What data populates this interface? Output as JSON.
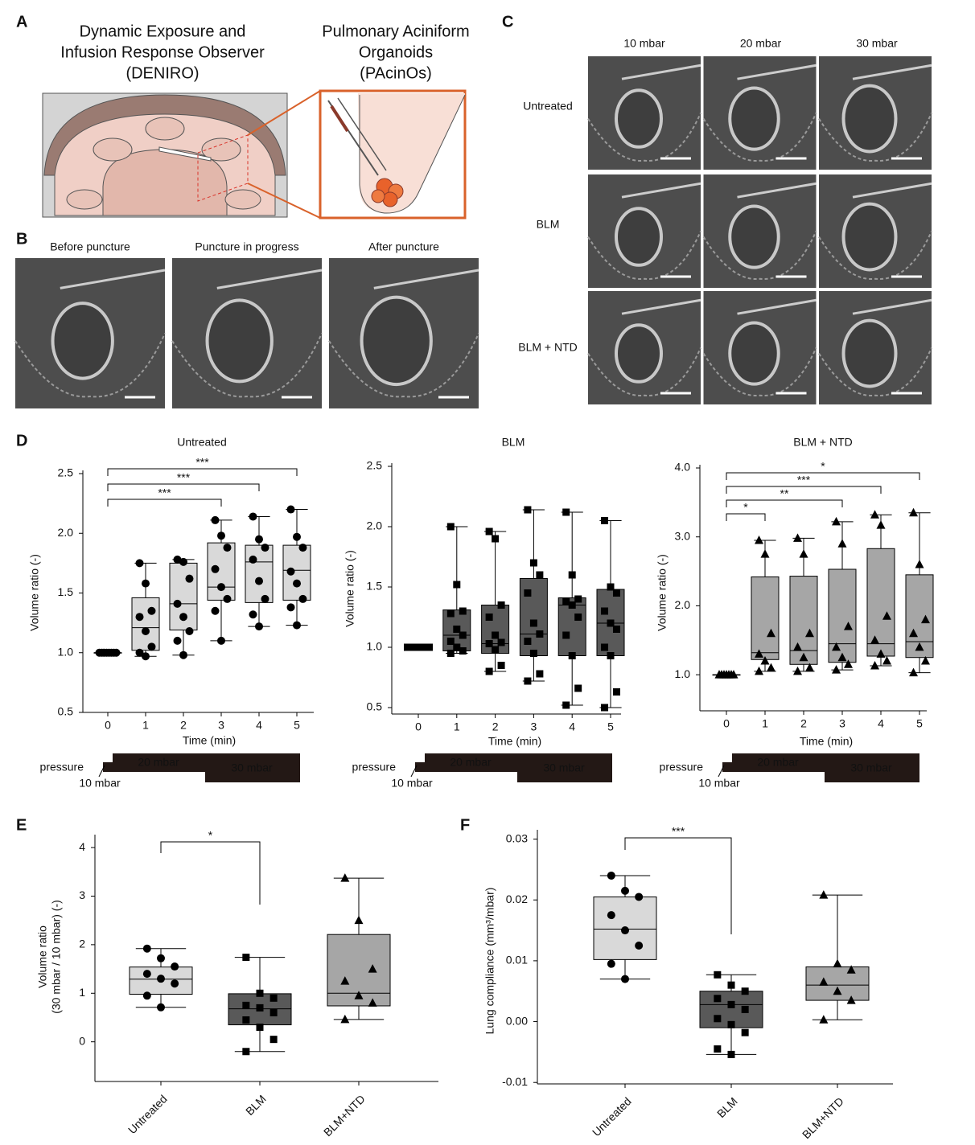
{
  "panel_labels": [
    "A",
    "B",
    "C",
    "D",
    "E",
    "F"
  ],
  "panel_a": {
    "left_title": [
      "Dynamic Exposure and",
      "Infusion Response Observer",
      "(DENIRO)"
    ],
    "right_title": [
      "Pulmonary Aciniform",
      "Organoids",
      "(PAcinOs)"
    ]
  },
  "panel_b": {
    "columns": [
      "Before puncture",
      "Puncture in progress",
      "After puncture"
    ]
  },
  "panel_c": {
    "columns": [
      "10 mbar",
      "20 mbar",
      "30 mbar"
    ],
    "rows": [
      "Untreated",
      "BLM",
      "BLM + NTD"
    ]
  },
  "pressure": {
    "label": "pressure",
    "start": "10 mbar",
    "steps": [
      "20 mbar",
      "30 mbar"
    ]
  },
  "chart_data": [
    {
      "type": "box",
      "title": "Untreated",
      "x_label": "Time (min)",
      "y_label": "Volume ratio (-)",
      "color": "#d9d9d9",
      "marker": "circle",
      "categories": [
        "0",
        "1",
        "2",
        "3",
        "4",
        "5"
      ],
      "ylim": [
        0.5,
        2.5
      ],
      "yticks": [
        {
          "value": 0.5,
          "label": "0.5"
        },
        {
          "value": 1,
          "label": "1.0"
        },
        {
          "value": 1.5,
          "label": "1.5"
        },
        {
          "value": 2,
          "label": "2.0"
        },
        {
          "value": 2.5,
          "label": "2.5"
        }
      ],
      "boxes": [
        {
          "min": 1,
          "q1": 1,
          "median": 1,
          "q3": 1,
          "max": 1,
          "points": [
            1,
            1,
            1,
            1,
            1,
            1,
            1,
            1
          ]
        },
        {
          "min": 0.97,
          "q1": 1.02,
          "median": 1.21,
          "q3": 1.46,
          "max": 1.75,
          "points": [
            1.75,
            1.58,
            1.35,
            1.3,
            1.18,
            1.05,
            1,
            0.97
          ]
        },
        {
          "min": 0.98,
          "q1": 1.19,
          "median": 1.41,
          "q3": 1.75,
          "max": 1.78,
          "points": [
            1.78,
            1.76,
            1.62,
            1.41,
            1.3,
            1.18,
            1.1,
            0.98
          ]
        },
        {
          "min": 1.1,
          "q1": 1.44,
          "median": 1.55,
          "q3": 1.92,
          "max": 2.11,
          "points": [
            2.11,
            1.98,
            1.88,
            1.7,
            1.55,
            1.45,
            1.35,
            1.1
          ]
        },
        {
          "min": 1.22,
          "q1": 1.42,
          "median": 1.76,
          "q3": 1.9,
          "max": 2.14,
          "points": [
            2.14,
            1.95,
            1.88,
            1.78,
            1.6,
            1.45,
            1.32,
            1.22
          ]
        },
        {
          "min": 1.23,
          "q1": 1.44,
          "median": 1.69,
          "q3": 1.9,
          "max": 2.2,
          "points": [
            2.2,
            1.97,
            1.88,
            1.68,
            1.58,
            1.45,
            1.38,
            1.23
          ]
        }
      ],
      "significance": [
        {
          "between": [
            "0",
            "5"
          ],
          "label": "***"
        },
        {
          "between": [
            "0",
            "4"
          ],
          "label": "***"
        },
        {
          "between": [
            "0",
            "3"
          ],
          "label": "***"
        }
      ]
    },
    {
      "type": "box",
      "title": "BLM",
      "x_label": "Time (min)",
      "y_label": "Volume ratio (-)",
      "color": "#595959",
      "marker": "square",
      "categories": [
        "0",
        "1",
        "2",
        "3",
        "4",
        "5"
      ],
      "ylim": [
        0.5,
        2.5
      ],
      "yticks": [
        {
          "value": 0.5,
          "label": "0.5"
        },
        {
          "value": 1,
          "label": "1.0"
        },
        {
          "value": 1.5,
          "label": "1.5"
        },
        {
          "value": 2,
          "label": "2.0"
        },
        {
          "value": 2.5,
          "label": "2.5"
        }
      ],
      "boxes": [
        {
          "min": 1,
          "q1": 1,
          "median": 1,
          "q3": 1,
          "max": 1,
          "points": [
            1,
            1,
            1,
            1,
            1,
            1,
            1,
            1,
            1,
            1
          ]
        },
        {
          "min": 0.95,
          "q1": 0.97,
          "median": 1.1,
          "q3": 1.31,
          "max": 2,
          "points": [
            2,
            1.52,
            1.3,
            1.28,
            1.15,
            1.1,
            1.05,
            1,
            0.97,
            0.95
          ]
        },
        {
          "min": 0.8,
          "q1": 0.95,
          "median": 1.03,
          "q3": 1.35,
          "max": 1.96,
          "points": [
            1.96,
            1.9,
            1.35,
            1.25,
            1.1,
            1.04,
            1.03,
            0.98,
            0.85,
            0.8
          ]
        },
        {
          "min": 0.72,
          "q1": 0.93,
          "median": 1.11,
          "q3": 1.57,
          "max": 2.14,
          "points": [
            2.14,
            1.7,
            1.6,
            1.45,
            1.2,
            1.11,
            1.05,
            0.95,
            0.78,
            0.72
          ]
        },
        {
          "min": 0.52,
          "q1": 0.93,
          "median": 1.35,
          "q3": 1.41,
          "max": 2.12,
          "points": [
            2.12,
            1.6,
            1.4,
            1.38,
            1.35,
            1.25,
            1.1,
            0.93,
            0.66,
            0.52
          ]
        },
        {
          "min": 0.5,
          "q1": 0.93,
          "median": 1.2,
          "q3": 1.48,
          "max": 2.05,
          "points": [
            2.05,
            1.5,
            1.45,
            1.3,
            1.2,
            1.15,
            1,
            0.93,
            0.63,
            0.5
          ]
        }
      ],
      "significance": []
    },
    {
      "type": "box",
      "title": "BLM + NTD",
      "x_label": "Time (min)",
      "y_label": "Volume ratio (-)",
      "color": "#a6a6a6",
      "marker": "triangle",
      "categories": [
        "0",
        "1",
        "2",
        "3",
        "4",
        "5"
      ],
      "ylim": [
        0.5,
        4
      ],
      "yticks": [
        {
          "value": 1,
          "label": "1.0"
        },
        {
          "value": 2,
          "label": "2.0"
        },
        {
          "value": 3,
          "label": "3.0"
        },
        {
          "value": 4,
          "label": "4.0"
        }
      ],
      "boxes": [
        {
          "min": 1,
          "q1": 1,
          "median": 1,
          "q3": 1,
          "max": 1,
          "points": [
            1,
            1,
            1,
            1,
            1,
            1,
            1
          ]
        },
        {
          "min": 1.05,
          "q1": 1.22,
          "median": 1.32,
          "q3": 2.42,
          "max": 2.95,
          "points": [
            2.95,
            2.75,
            1.6,
            1.3,
            1.2,
            1.1,
            1.05
          ]
        },
        {
          "min": 1.05,
          "q1": 1.15,
          "median": 1.35,
          "q3": 2.43,
          "max": 2.98,
          "points": [
            2.98,
            2.75,
            1.6,
            1.4,
            1.25,
            1.1,
            1.05
          ]
        },
        {
          "min": 1.07,
          "q1": 1.18,
          "median": 1.45,
          "q3": 2.53,
          "max": 3.22,
          "points": [
            3.22,
            2.9,
            1.7,
            1.4,
            1.25,
            1.15,
            1.07
          ]
        },
        {
          "min": 1.13,
          "q1": 1.27,
          "median": 1.45,
          "q3": 2.83,
          "max": 3.32,
          "points": [
            3.32,
            3.17,
            1.85,
            1.5,
            1.3,
            1.2,
            1.13
          ]
        },
        {
          "min": 1.03,
          "q1": 1.25,
          "median": 1.48,
          "q3": 2.45,
          "max": 3.35,
          "points": [
            3.35,
            2.6,
            1.8,
            1.6,
            1.4,
            1.2,
            1.03
          ]
        }
      ],
      "significance": [
        {
          "between": [
            "0",
            "5"
          ],
          "label": "*"
        },
        {
          "between": [
            "0",
            "4"
          ],
          "label": "***"
        },
        {
          "between": [
            "0",
            "3"
          ],
          "label": "**"
        },
        {
          "between": [
            "0",
            "1"
          ],
          "label": "*"
        }
      ]
    },
    {
      "type": "box",
      "y_label": [
        "Volume ratio",
        "(30 mbar / 10 mbar) (-)"
      ],
      "categories": [
        "Untreated",
        "BLM",
        "BLM+NTD"
      ],
      "ylim": [
        -0.8,
        4.2
      ],
      "yticks": [
        0,
        1,
        2,
        3,
        4
      ],
      "boxes": [
        {
          "color": "#d9d9d9",
          "marker": "circle",
          "min": 0.71,
          "q1": 0.98,
          "median": 1.29,
          "q3": 1.54,
          "max": 1.92,
          "points": [
            1.92,
            1.72,
            1.55,
            1.4,
            1.3,
            1.2,
            0.95,
            0.71
          ]
        },
        {
          "color": "#595959",
          "marker": "square",
          "min": -0.2,
          "q1": 0.35,
          "median": 0.68,
          "q3": 0.99,
          "max": 1.74,
          "points": [
            1.74,
            1,
            0.9,
            0.75,
            0.7,
            0.6,
            0.45,
            0.3,
            0.05,
            -0.2
          ]
        },
        {
          "color": "#a6a6a6",
          "marker": "triangle",
          "min": 0.46,
          "q1": 0.74,
          "median": 1,
          "q3": 2.21,
          "max": 3.37,
          "points": [
            3.37,
            2.5,
            1.5,
            1.25,
            0.95,
            0.8,
            0.46
          ]
        }
      ],
      "significance": [
        {
          "between": [
            "Untreated",
            "BLM"
          ],
          "label": "*"
        }
      ]
    },
    {
      "type": "box",
      "y_label": "Lung compliance (mm³/mbar)",
      "categories": [
        "Untreated",
        "BLM",
        "BLM+NTD"
      ],
      "ylim": [
        -0.0105,
        0.031
      ],
      "yticks": [
        -0.01,
        {
          "value": 0,
          "label": "0.00"
        },
        0.01,
        0.02,
        0.03
      ],
      "boxes": [
        {
          "color": "#d9d9d9",
          "marker": "circle",
          "min": 0.007,
          "q1": 0.0102,
          "median": 0.0152,
          "q3": 0.0205,
          "max": 0.024,
          "points": [
            0.024,
            0.0215,
            0.0205,
            0.0175,
            0.015,
            0.0125,
            0.0095,
            0.007
          ]
        },
        {
          "color": "#595959",
          "marker": "square",
          "min": -0.0054,
          "q1": -0.001,
          "median": 0.0028,
          "q3": 0.005,
          "max": 0.0077,
          "points": [
            0.0077,
            0.006,
            0.005,
            0.0038,
            0.0028,
            0.002,
            0.0005,
            -0.0005,
            -0.0018,
            -0.0045,
            -0.0054
          ]
        },
        {
          "color": "#a6a6a6",
          "marker": "triangle",
          "min": 0.0003,
          "q1": 0.0035,
          "median": 0.006,
          "q3": 0.009,
          "max": 0.0208,
          "points": [
            0.0208,
            0.0095,
            0.0085,
            0.0065,
            0.005,
            0.0035,
            0.0003
          ]
        }
      ],
      "significance": [
        {
          "between": [
            "Untreated",
            "BLM"
          ],
          "label": "***"
        }
      ]
    }
  ]
}
